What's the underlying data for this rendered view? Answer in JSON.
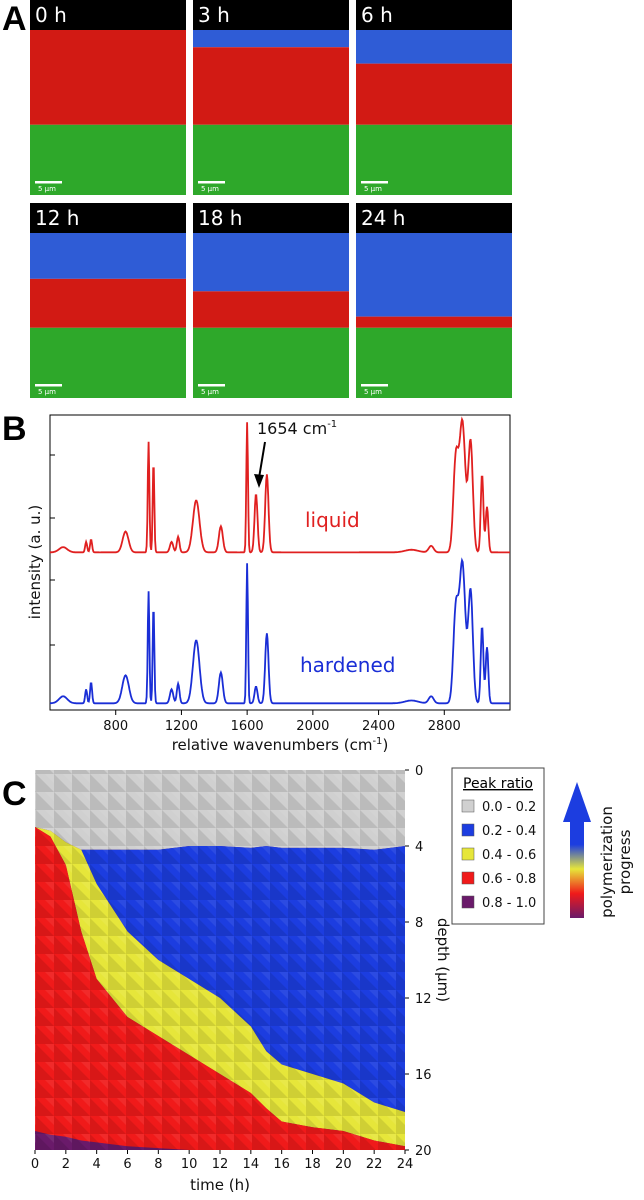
{
  "panel_a": {
    "letter": "A",
    "scale_bar": "5 µm",
    "images": [
      {
        "time": "0 h",
        "blue_fraction": 0.0,
        "red_fraction": 0.52
      },
      {
        "time": "3 h",
        "blue_fraction": 0.1,
        "red_fraction": 0.45
      },
      {
        "time": "6 h",
        "blue_fraction": 0.22,
        "red_fraction": 0.4
      },
      {
        "time": "12 h",
        "blue_fraction": 0.3,
        "red_fraction": 0.32
      },
      {
        "time": "18 h",
        "blue_fraction": 0.4,
        "red_fraction": 0.25
      },
      {
        "time": "24 h",
        "blue_fraction": 0.6,
        "red_fraction": 0.08
      }
    ],
    "colors": {
      "blue": "#2f5cd6",
      "red": "#d21a14",
      "green": "#2ea82a",
      "top": "#000000"
    }
  },
  "panel_b": {
    "letter": "B",
    "annotation": "1654 cm",
    "annotation_sup": "-1",
    "chart_data": {
      "type": "line",
      "xlabel": "relative wavenumbers (cm",
      "xlabel_sup": "-1",
      "xlabel_end": ")",
      "ylabel": "intensity (a. u.)",
      "xlim": [
        400,
        3200
      ],
      "xticks": [
        "800",
        "1200",
        "1600",
        "2000",
        "2400",
        "2800"
      ],
      "xtick_values": [
        800,
        1200,
        1600,
        2000,
        2400,
        2800
      ],
      "series": [
        {
          "name": "liquid",
          "color": "#e02020",
          "baseline": 0.05,
          "peaks": [
            [
              480,
              0.04,
              25
            ],
            [
              620,
              0.08,
              6
            ],
            [
              650,
              0.1,
              6
            ],
            [
              860,
              0.16,
              18
            ],
            [
              1000,
              0.85,
              5
            ],
            [
              1030,
              0.7,
              5
            ],
            [
              1140,
              0.08,
              10
            ],
            [
              1180,
              0.12,
              8
            ],
            [
              1290,
              0.4,
              20
            ],
            [
              1440,
              0.2,
              12
            ],
            [
              1600,
              1.0,
              5
            ],
            [
              1654,
              0.45,
              9
            ],
            [
              1720,
              0.6,
              10
            ],
            [
              2600,
              0.02,
              40
            ],
            [
              2720,
              0.05,
              15
            ],
            [
              2870,
              0.7,
              15
            ],
            [
              2910,
              1.0,
              18
            ],
            [
              2960,
              0.85,
              14
            ],
            [
              3030,
              0.6,
              8
            ],
            [
              3060,
              0.35,
              8
            ]
          ]
        },
        {
          "name": "hardened",
          "color": "#1a2ed6",
          "baseline": 0.05,
          "peaks": [
            [
              480,
              0.05,
              25
            ],
            [
              620,
              0.1,
              6
            ],
            [
              650,
              0.15,
              6
            ],
            [
              860,
              0.2,
              20
            ],
            [
              1000,
              0.8,
              5
            ],
            [
              1030,
              0.7,
              5
            ],
            [
              1140,
              0.1,
              10
            ],
            [
              1180,
              0.14,
              8
            ],
            [
              1290,
              0.45,
              20
            ],
            [
              1440,
              0.22,
              12
            ],
            [
              1600,
              1.0,
              5
            ],
            [
              1654,
              0.12,
              9
            ],
            [
              1720,
              0.5,
              10
            ],
            [
              2600,
              0.02,
              40
            ],
            [
              2720,
              0.05,
              15
            ],
            [
              2870,
              0.65,
              15
            ],
            [
              2910,
              1.0,
              18
            ],
            [
              2960,
              0.8,
              14
            ],
            [
              3030,
              0.55,
              8
            ],
            [
              3060,
              0.4,
              8
            ]
          ]
        }
      ]
    }
  },
  "panel_c": {
    "letter": "C",
    "chart_data": {
      "type": "heatmap",
      "xlabel": "time (h)",
      "ylabel": "depth (µm)",
      "xlim": [
        0,
        24
      ],
      "ylim": [
        0,
        20
      ],
      "xticks": [
        "0",
        "2",
        "4",
        "6",
        "8",
        "10",
        "12",
        "14",
        "16",
        "18",
        "20",
        "22",
        "24"
      ],
      "yticks": [
        "0",
        "4",
        "8",
        "12",
        "16",
        "20"
      ],
      "legend_title": "Peak ratio",
      "legend": [
        {
          "label": "0.0 - 0.2",
          "color": "#d0d0d0"
        },
        {
          "label": "0.2 - 0.4",
          "color": "#1c3de0"
        },
        {
          "label": "0.4 - 0.6",
          "color": "#e6e63a"
        },
        {
          "label": "0.6 - 0.8",
          "color": "#f01a1a"
        },
        {
          "label": "0.8 - 1.0",
          "color": "#6a1a6a"
        }
      ],
      "arrow_label": "polymerization progress",
      "boundaries": {
        "time": [
          0,
          1,
          2,
          3,
          4,
          6,
          8,
          10,
          12,
          14,
          15,
          16,
          18,
          20,
          22,
          24
        ],
        "gray_blue": [
          3.0,
          3.2,
          3.8,
          4.2,
          4.2,
          4.2,
          4.2,
          4.0,
          4.0,
          4.1,
          4.0,
          4.1,
          4.1,
          4.1,
          4.2,
          4.0
        ],
        "blue_yellow": [
          3.0,
          3.2,
          3.8,
          4.2,
          6.0,
          8.5,
          10.0,
          11.0,
          12.0,
          13.5,
          14.8,
          15.5,
          16.0,
          16.5,
          17.5,
          18.0
        ],
        "yellow_red": [
          3.0,
          3.5,
          5.0,
          8.5,
          11.0,
          13.0,
          14.0,
          15.0,
          16.0,
          17.0,
          17.8,
          18.5,
          18.8,
          19.0,
          19.5,
          19.8
        ],
        "red_purple": [
          19.0,
          19.2,
          19.3,
          19.5,
          19.6,
          19.8,
          19.9,
          20.0,
          20.0,
          20.0,
          20.0,
          20.0,
          20.0,
          20.0,
          20.0,
          20.0
        ]
      }
    }
  }
}
